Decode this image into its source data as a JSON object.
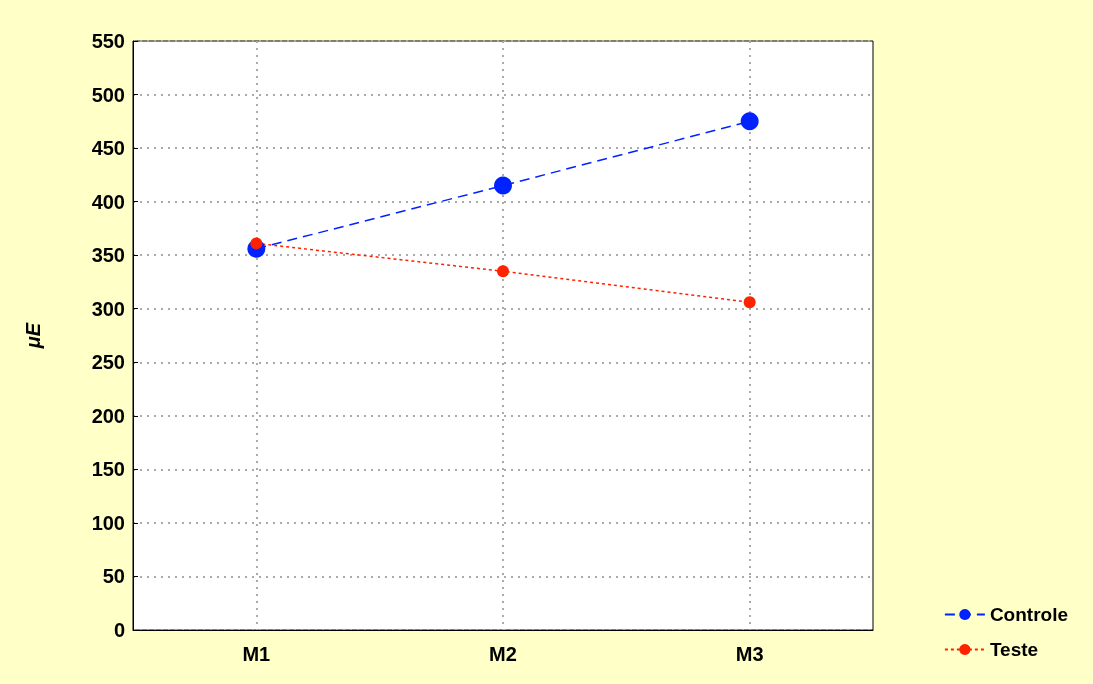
{
  "chart_data": {
    "type": "line",
    "ylabel": "μE",
    "categories": [
      "M1",
      "M2",
      "M3"
    ],
    "series": [
      {
        "name": "Controle",
        "color": "#0022ff",
        "values": [
          356,
          415,
          475
        ],
        "line_style": "dashed"
      },
      {
        "name": "Teste",
        "color": "#ff2200",
        "values": [
          361,
          335,
          306
        ],
        "line_style": "dotted"
      }
    ],
    "ylim": [
      0,
      550
    ],
    "yticks": [
      0,
      50,
      100,
      150,
      200,
      250,
      300,
      350,
      400,
      450,
      500,
      550
    ],
    "grid": true,
    "legend": "bottom right",
    "marker": "circle"
  }
}
